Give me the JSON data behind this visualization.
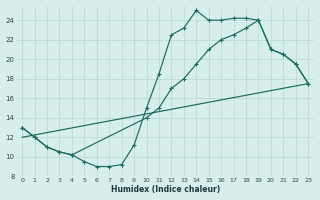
{
  "xlabel": "Humidex (Indice chaleur)",
  "bg_color": "#d6eeec",
  "grid_color": "#b8d8d5",
  "line_color": "#1a6b5a",
  "xlim": [
    -0.5,
    23.5
  ],
  "ylim": [
    8,
    25.5
  ],
  "xticks": [
    0,
    1,
    2,
    3,
    4,
    5,
    6,
    7,
    8,
    9,
    10,
    11,
    12,
    13,
    14,
    15,
    16,
    17,
    18,
    19,
    20,
    21,
    22,
    23
  ],
  "yticks": [
    8,
    10,
    12,
    14,
    16,
    18,
    20,
    22,
    24
  ],
  "line1_x": [
    0,
    1,
    2,
    3,
    4,
    5,
    6,
    7,
    8,
    9,
    10,
    11,
    12,
    13,
    14,
    15,
    16,
    17,
    18,
    19,
    20,
    21,
    22,
    23
  ],
  "line1_y": [
    13,
    12,
    11,
    10.5,
    10.2,
    9.5,
    9.0,
    9.0,
    9.2,
    11.2,
    15.0,
    18.5,
    22.5,
    23.2,
    25.0,
    24.0,
    24.0,
    24.2,
    24.2,
    24.0,
    21.0,
    20.5,
    19.5,
    17.5
  ],
  "line2_x": [
    0,
    1,
    2,
    3,
    4,
    10,
    11,
    12,
    13,
    14,
    15,
    16,
    17,
    18,
    19,
    20,
    21,
    22,
    23
  ],
  "line2_y": [
    13,
    12,
    11,
    10.5,
    10.2,
    14.0,
    15.0,
    17.0,
    18.0,
    19.5,
    21.0,
    22.0,
    22.5,
    23.2,
    24.0,
    21.0,
    20.5,
    19.5,
    17.5
  ],
  "line3_x": [
    0,
    23
  ],
  "line3_y": [
    12.0,
    17.5
  ]
}
